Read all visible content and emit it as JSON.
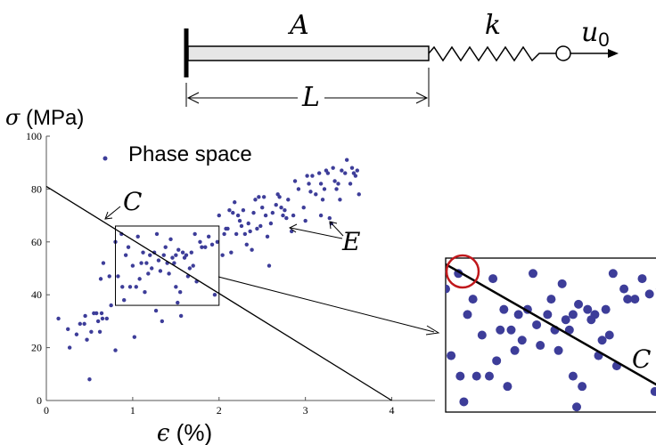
{
  "schematic": {
    "label_area": "A",
    "label_spring": "k",
    "label_length": "L",
    "label_disp_base": "u",
    "label_disp_sub": "0"
  },
  "plot": {
    "ylabel_symbol": "σ",
    "ylabel_unit": " (MPa)",
    "xlabel_symbol": "ϵ",
    "xlabel_unit": " (%)",
    "legend_label": "Phase space",
    "label_C": "C",
    "label_E": "E",
    "inset_label_C": "C",
    "colors": {
      "points": "#3d3d99",
      "highlight_circle": "#c0181c",
      "lines": "#000000"
    }
  },
  "chart_data": {
    "type": "scatter",
    "xlim": [
      0,
      4.5
    ],
    "ylim": [
      0,
      100
    ],
    "xticks": [
      "0",
      "1",
      "2",
      "3",
      "4"
    ],
    "yticks": [
      "0",
      "20",
      "40",
      "60",
      "80",
      "100"
    ],
    "legend": "Phase space",
    "constraint_line": {
      "name": "C",
      "x": [
        0,
        4
      ],
      "y": [
        81,
        0
      ]
    },
    "zoom_window": {
      "x": [
        0.8,
        2.0
      ],
      "y": [
        36,
        66
      ]
    },
    "points": [
      [
        0.14,
        31
      ],
      [
        0.25,
        27
      ],
      [
        0.27,
        20
      ],
      [
        0.35,
        25
      ],
      [
        0.39,
        29
      ],
      [
        0.44,
        29
      ],
      [
        0.45,
        32
      ],
      [
        0.47,
        23
      ],
      [
        0.5,
        8
      ],
      [
        0.52,
        26
      ],
      [
        0.55,
        33
      ],
      [
        0.58,
        33
      ],
      [
        0.6,
        30
      ],
      [
        0.62,
        26
      ],
      [
        0.63,
        46
      ],
      [
        0.64,
        33
      ],
      [
        0.65,
        31
      ],
      [
        0.66,
        52
      ],
      [
        0.7,
        31
      ],
      [
        0.73,
        47
      ],
      [
        0.75,
        36
      ],
      [
        0.8,
        19
      ],
      [
        0.8,
        60
      ],
      [
        0.83,
        47
      ],
      [
        0.87,
        63
      ],
      [
        0.88,
        43
      ],
      [
        0.9,
        38
      ],
      [
        0.92,
        55
      ],
      [
        0.95,
        58
      ],
      [
        0.97,
        43
      ],
      [
        1.0,
        51
      ],
      [
        1.02,
        24
      ],
      [
        1.04,
        43
      ],
      [
        1.06,
        62
      ],
      [
        1.08,
        46
      ],
      [
        1.1,
        52
      ],
      [
        1.12,
        56
      ],
      [
        1.14,
        41
      ],
      [
        1.16,
        52
      ],
      [
        1.18,
        48
      ],
      [
        1.2,
        55
      ],
      [
        1.22,
        50
      ],
      [
        1.25,
        56
      ],
      [
        1.27,
        34
      ],
      [
        1.28,
        63
      ],
      [
        1.3,
        53
      ],
      [
        1.32,
        49
      ],
      [
        1.34,
        30
      ],
      [
        1.36,
        55
      ],
      [
        1.38,
        58
      ],
      [
        1.4,
        52
      ],
      [
        1.42,
        48
      ],
      [
        1.44,
        61
      ],
      [
        1.46,
        54
      ],
      [
        1.48,
        52
      ],
      [
        1.5,
        55
      ],
      [
        1.5,
        43
      ],
      [
        1.52,
        37
      ],
      [
        1.53,
        57
      ],
      [
        1.55,
        41
      ],
      [
        1.56,
        32
      ],
      [
        1.58,
        56
      ],
      [
        1.6,
        54
      ],
      [
        1.62,
        55
      ],
      [
        1.64,
        47
      ],
      [
        1.66,
        50
      ],
      [
        1.68,
        56
      ],
      [
        1.7,
        51
      ],
      [
        1.72,
        63
      ],
      [
        1.74,
        45
      ],
      [
        1.78,
        60
      ],
      [
        1.8,
        58
      ],
      [
        1.84,
        58
      ],
      [
        1.88,
        62
      ],
      [
        1.92,
        59
      ],
      [
        1.95,
        40
      ],
      [
        1.98,
        60
      ],
      [
        2.0,
        70
      ],
      [
        2.04,
        55
      ],
      [
        2.06,
        63
      ],
      [
        2.08,
        65
      ],
      [
        2.1,
        65
      ],
      [
        2.12,
        72
      ],
      [
        2.14,
        56
      ],
      [
        2.16,
        71
      ],
      [
        2.18,
        75
      ],
      [
        2.2,
        63
      ],
      [
        2.22,
        70
      ],
      [
        2.24,
        68
      ],
      [
        2.26,
        66
      ],
      [
        2.28,
        72
      ],
      [
        2.3,
        63
      ],
      [
        2.32,
        59
      ],
      [
        2.34,
        67
      ],
      [
        2.36,
        64
      ],
      [
        2.38,
        57
      ],
      [
        2.4,
        71
      ],
      [
        2.42,
        76
      ],
      [
        2.44,
        65
      ],
      [
        2.46,
        77
      ],
      [
        2.48,
        66
      ],
      [
        2.5,
        73
      ],
      [
        2.52,
        77
      ],
      [
        2.54,
        70
      ],
      [
        2.56,
        62
      ],
      [
        2.58,
        51
      ],
      [
        2.6,
        67
      ],
      [
        2.62,
        71
      ],
      [
        2.66,
        74
      ],
      [
        2.68,
        78
      ],
      [
        2.7,
        77
      ],
      [
        2.72,
        73
      ],
      [
        2.74,
        70
      ],
      [
        2.76,
        72
      ],
      [
        2.78,
        69
      ],
      [
        2.8,
        76
      ],
      [
        2.84,
        64
      ],
      [
        2.86,
        70
      ],
      [
        2.88,
        83
      ],
      [
        2.92,
        80
      ],
      [
        2.98,
        73
      ],
      [
        3.0,
        68
      ],
      [
        3.02,
        85
      ],
      [
        3.04,
        82
      ],
      [
        3.06,
        79
      ],
      [
        3.08,
        85
      ],
      [
        3.12,
        78
      ],
      [
        3.16,
        86
      ],
      [
        3.18,
        82
      ],
      [
        3.2,
        76
      ],
      [
        3.22,
        80
      ],
      [
        3.24,
        87
      ],
      [
        3.26,
        86
      ],
      [
        3.28,
        69
      ],
      [
        3.3,
        67
      ],
      [
        3.32,
        88
      ],
      [
        3.34,
        83
      ],
      [
        3.36,
        80
      ],
      [
        3.38,
        82
      ],
      [
        3.4,
        76
      ],
      [
        3.42,
        87
      ],
      [
        3.46,
        86
      ],
      [
        3.48,
        91
      ],
      [
        3.52,
        82
      ],
      [
        3.54,
        88
      ],
      [
        3.56,
        86
      ],
      [
        3.58,
        85
      ],
      [
        3.6,
        87
      ],
      [
        3.62,
        78
      ],
      [
        3.18,
        70
      ]
    ]
  }
}
